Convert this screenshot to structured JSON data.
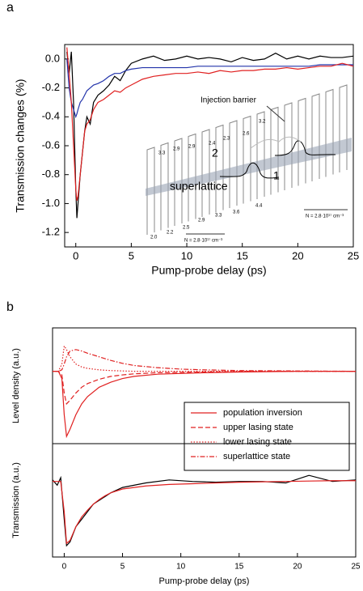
{
  "chart_data": [
    {
      "type": "line",
      "panel_label": "a",
      "x_label": "Pump-probe delay (ps)",
      "y_label": "Transmission changes (%)",
      "xlim": [
        -1,
        25
      ],
      "xticks": [
        0,
        5,
        10,
        15,
        20,
        25
      ],
      "ylim": [
        -1.3,
        0.1
      ],
      "yticks": [
        {
          "value": 0,
          "label": "0.0"
        },
        -0.2,
        -0.4,
        -0.6,
        -0.8,
        {
          "value": -1,
          "label": "-1.0"
        },
        -1.2
      ],
      "series": [
        {
          "color": "#000000",
          "dash": "solid",
          "x": [
            -0.8,
            -0.6,
            -0.4,
            -0.2,
            0,
            0.1,
            0.2,
            0.4,
            0.6,
            0.8,
            1,
            1.3,
            1.6,
            2,
            2.5,
            3,
            3.5,
            4,
            4.5,
            5,
            6,
            7,
            8,
            9,
            10,
            11,
            12,
            13,
            14,
            15,
            16,
            17,
            18,
            19,
            20,
            21,
            22,
            23,
            24,
            25
          ],
          "values": [
            0.05,
            -0.1,
            0.05,
            -0.3,
            -0.9,
            -1.1,
            -1.0,
            -0.8,
            -0.65,
            -0.5,
            -0.4,
            -0.45,
            -0.3,
            -0.25,
            -0.22,
            -0.18,
            -0.12,
            -0.15,
            -0.08,
            -0.03,
            0.0,
            0.02,
            -0.01,
            0.0,
            0.02,
            0.0,
            0.01,
            0.0,
            -0.02,
            0.01,
            -0.01,
            0.0,
            0.04,
            0.0,
            0.02,
            0.0,
            0.02,
            0.01,
            0.01,
            0.02
          ]
        },
        {
          "color": "#2233aa",
          "dash": "solid",
          "x": [
            -0.8,
            -0.6,
            -0.4,
            -0.2,
            0,
            0.1,
            0.2,
            0.4,
            0.6,
            0.8,
            1,
            1.3,
            1.6,
            2,
            2.5,
            3,
            3.5,
            4,
            4.5,
            5,
            6,
            7,
            8,
            9,
            10,
            11,
            12,
            13,
            14,
            15,
            16,
            17,
            18,
            19,
            20,
            21,
            22,
            23,
            24,
            25
          ],
          "values": [
            0.0,
            -0.2,
            -0.3,
            -0.35,
            -0.4,
            -0.38,
            -0.35,
            -0.3,
            -0.28,
            -0.25,
            -0.22,
            -0.2,
            -0.18,
            -0.17,
            -0.15,
            -0.12,
            -0.1,
            -0.1,
            -0.08,
            -0.07,
            -0.06,
            -0.06,
            -0.06,
            -0.06,
            -0.06,
            -0.05,
            -0.05,
            -0.05,
            -0.05,
            -0.05,
            -0.05,
            -0.05,
            -0.05,
            -0.05,
            -0.05,
            -0.05,
            -0.04,
            -0.04,
            -0.04,
            -0.04
          ]
        },
        {
          "color": "#e02020",
          "dash": "solid",
          "x": [
            -0.8,
            -0.6,
            -0.4,
            -0.2,
            0,
            0.1,
            0.2,
            0.4,
            0.6,
            0.8,
            1,
            1.3,
            1.6,
            2,
            2.5,
            3,
            3.5,
            4,
            4.5,
            5,
            6,
            7,
            8,
            9,
            10,
            11,
            12,
            13,
            14,
            15,
            16,
            17,
            18,
            19,
            20,
            21,
            22,
            23,
            24,
            25
          ],
          "values": [
            0.08,
            -0.1,
            -0.3,
            -0.6,
            -0.9,
            -0.98,
            -0.95,
            -0.8,
            -0.65,
            -0.5,
            -0.45,
            -0.42,
            -0.35,
            -0.3,
            -0.28,
            -0.25,
            -0.22,
            -0.23,
            -0.2,
            -0.18,
            -0.14,
            -0.12,
            -0.11,
            -0.1,
            -0.1,
            -0.09,
            -0.1,
            -0.08,
            -0.09,
            -0.08,
            -0.08,
            -0.07,
            -0.07,
            -0.06,
            -0.07,
            -0.06,
            -0.05,
            -0.05,
            -0.03,
            -0.05
          ]
        }
      ],
      "inset": {
        "barrier": "Injection barrier",
        "state_upper": "2",
        "state_lower": "1",
        "region": "superlattice",
        "widths": [
          "3.3",
          "2.9",
          "2.9",
          "2.4",
          "2.3",
          "2.6",
          "3.2",
          "2.0",
          "2.2",
          "2.5",
          "2.9",
          "3.3",
          "3.6",
          "4.4"
        ],
        "doping": [
          "N = 2.8·10¹⁷ cm⁻³",
          "N = 2.8·10¹⁷ cm⁻³"
        ]
      }
    },
    {
      "type": "line",
      "panel_label": "b",
      "y_label": "Level density (a.u.)",
      "xlim": [
        -1,
        25
      ],
      "ylim": [
        -1,
        0.6
      ],
      "legend": "lower-right",
      "series": [
        {
          "name": "population inversion",
          "color": "#e02020",
          "dash": "solid",
          "x": [
            -2,
            -1,
            -0.5,
            -0.2,
            0,
            0.2,
            0.5,
            1,
            1.5,
            2,
            3,
            4,
            5,
            6,
            8,
            10,
            12,
            15,
            20,
            25
          ],
          "values": [
            0,
            0,
            0,
            -0.1,
            -0.6,
            -0.9,
            -0.8,
            -0.6,
            -0.45,
            -0.35,
            -0.22,
            -0.15,
            -0.1,
            -0.07,
            -0.04,
            -0.03,
            -0.02,
            -0.01,
            0,
            0
          ]
        },
        {
          "name": "upper lasing state",
          "color": "#e02020",
          "dash": "dashed",
          "x": [
            -2,
            -1,
            -0.5,
            -0.2,
            0,
            0.2,
            0.5,
            1,
            1.5,
            2,
            3,
            4,
            5,
            6,
            8,
            10,
            12,
            15,
            20,
            25
          ],
          "values": [
            0,
            0,
            0,
            -0.05,
            -0.3,
            -0.45,
            -0.4,
            -0.3,
            -0.22,
            -0.17,
            -0.11,
            -0.07,
            -0.05,
            -0.035,
            -0.02,
            -0.015,
            -0.01,
            -0.005,
            0,
            0
          ]
        },
        {
          "name": "lower lasing state",
          "color": "#e02020",
          "dash": "dotted",
          "x": [
            -2,
            -1,
            -0.5,
            -0.2,
            0,
            0.2,
            0.5,
            1,
            1.5,
            2,
            3,
            4,
            5,
            6,
            8,
            10,
            12,
            15,
            20,
            25
          ],
          "values": [
            0,
            0,
            0,
            0.1,
            0.35,
            0.3,
            0.2,
            0.1,
            0.06,
            0.04,
            0.02,
            0.01,
            0.005,
            0,
            0,
            0,
            0,
            0,
            0,
            0
          ]
        },
        {
          "name": "superlattice state",
          "color": "#e02020",
          "dash": "dashdot",
          "x": [
            -2,
            -1,
            -0.5,
            -0.2,
            0,
            0.2,
            0.5,
            1,
            1.5,
            2,
            3,
            4,
            5,
            6,
            8,
            10,
            12,
            15,
            20,
            25
          ],
          "values": [
            0,
            0,
            0,
            0.02,
            0.1,
            0.2,
            0.28,
            0.3,
            0.28,
            0.25,
            0.2,
            0.15,
            0.11,
            0.08,
            0.05,
            0.03,
            0.02,
            0.01,
            0.005,
            0
          ]
        }
      ]
    },
    {
      "type": "line",
      "y_label": "Transmission (a.u.)",
      "x_label": "Pump-probe delay (ps)",
      "xlim": [
        -1,
        25
      ],
      "xticks": [
        0,
        5,
        10,
        15,
        20,
        25
      ],
      "ylim": [
        -1,
        0.5
      ],
      "series": [
        {
          "color": "#000000",
          "dash": "solid",
          "x": [
            -1,
            -0.6,
            -0.3,
            0,
            0.2,
            0.5,
            1,
            1.5,
            2,
            2.5,
            3,
            3.5,
            4,
            5,
            7,
            9,
            11,
            13,
            15,
            17,
            19,
            21,
            23,
            25
          ],
          "values": [
            0.02,
            -0.05,
            0.05,
            -0.5,
            -0.85,
            -0.8,
            -0.6,
            -0.5,
            -0.4,
            -0.3,
            -0.25,
            -0.2,
            -0.15,
            -0.08,
            -0.02,
            0.02,
            0.0,
            -0.01,
            0.0,
            0.0,
            -0.02,
            0.08,
            0.0,
            0.02
          ]
        },
        {
          "color": "#e02020",
          "dash": "solid",
          "x": [
            -1,
            -0.6,
            -0.3,
            0,
            0.2,
            0.5,
            1,
            1.5,
            2,
            2.5,
            3,
            3.5,
            4,
            5,
            7,
            9,
            11,
            13,
            15,
            17,
            19,
            21,
            23,
            25
          ],
          "values": [
            0,
            0,
            0,
            -0.4,
            -0.82,
            -0.78,
            -0.6,
            -0.47,
            -0.38,
            -0.3,
            -0.24,
            -0.19,
            -0.15,
            -0.1,
            -0.06,
            -0.04,
            -0.03,
            -0.02,
            -0.01,
            -0.005,
            0,
            0.005,
            0.01,
            0.01
          ]
        }
      ]
    }
  ]
}
